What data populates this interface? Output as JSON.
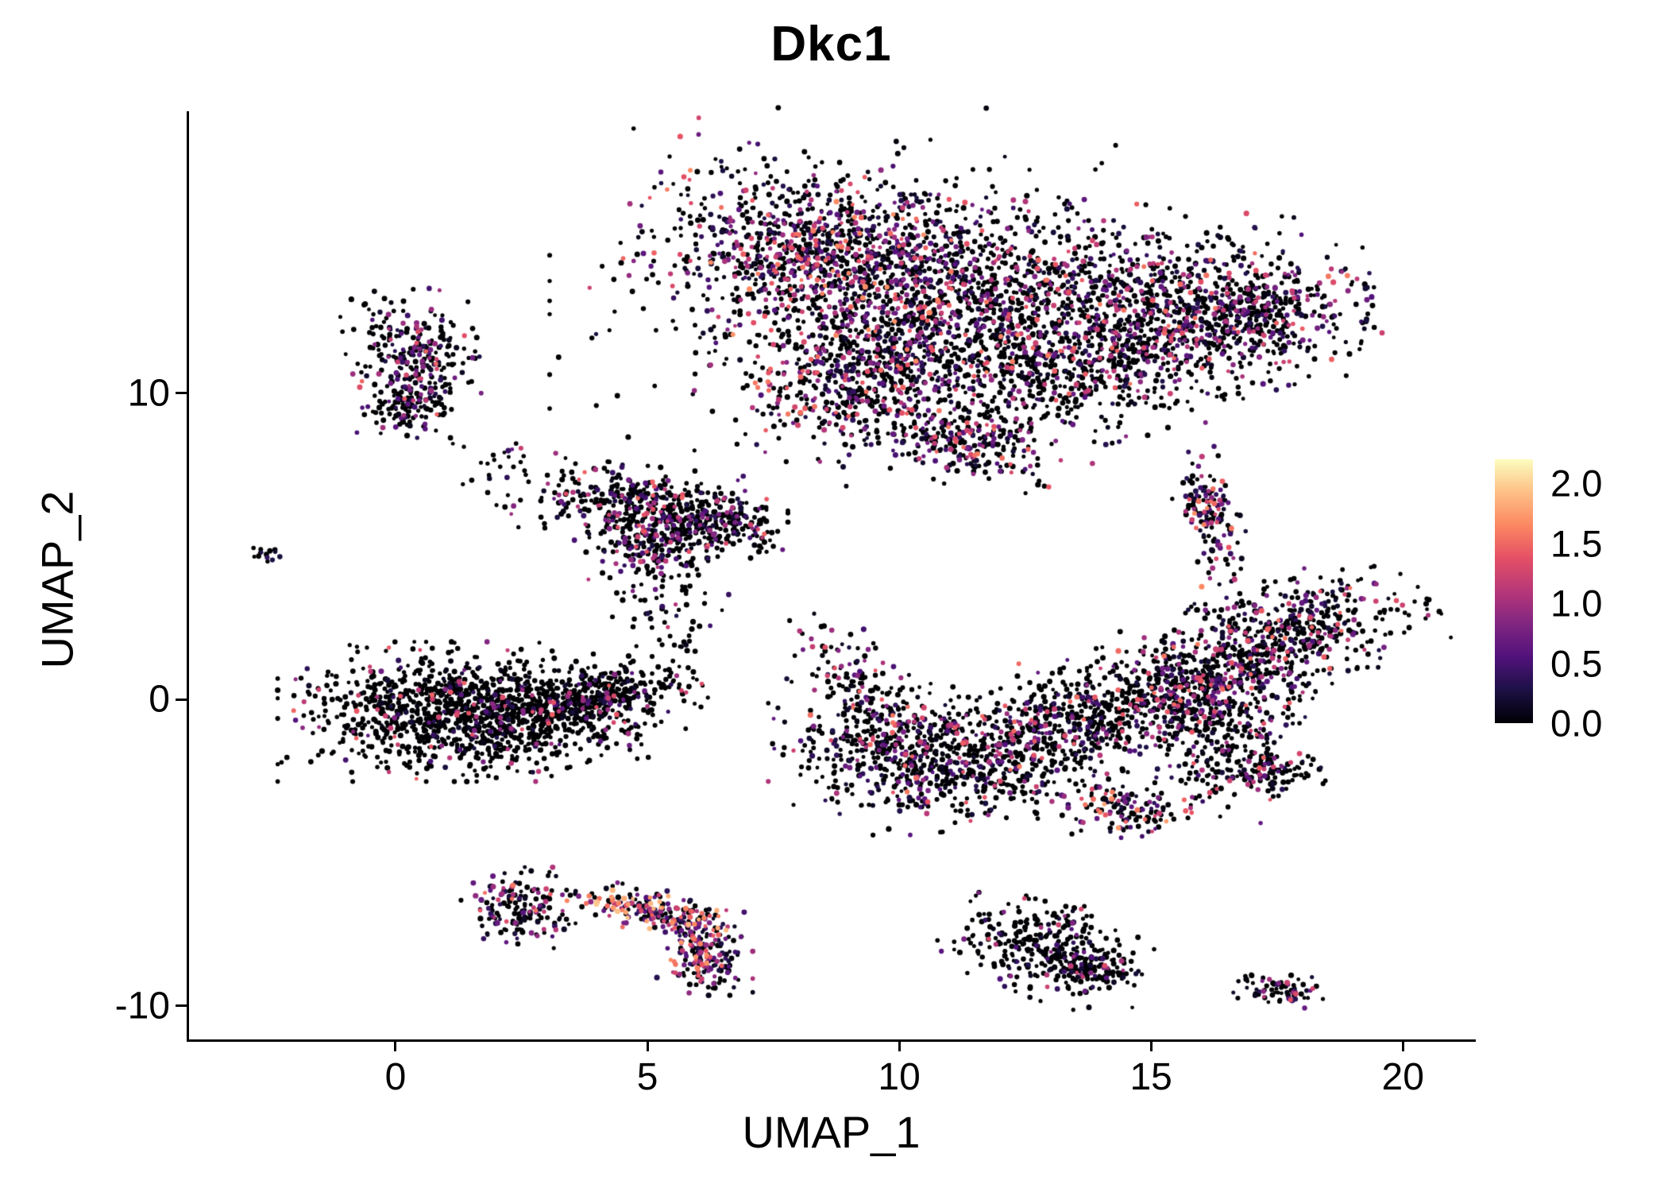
{
  "chart_data": {
    "type": "scatter",
    "title": "Dkc1",
    "xlabel": "UMAP_1",
    "ylabel": "UMAP_2",
    "x_ticks": [
      0,
      5,
      10,
      15,
      20
    ],
    "y_ticks": [
      -10,
      0,
      10
    ],
    "x_range": [
      -4.1,
      21.4
    ],
    "y_range": [
      -11.1,
      19.2
    ],
    "grid": false,
    "background": "#ffffff",
    "axis_color": "#000000",
    "legend": {
      "position": "right",
      "ticks": [
        2.0,
        1.5,
        1.0,
        0.5,
        0.0
      ],
      "min": 0.0,
      "max": 2.2,
      "colormap": "magma",
      "stops": [
        {
          "t": 0.0,
          "hex": "#000004"
        },
        {
          "t": 0.13,
          "hex": "#1d1147"
        },
        {
          "t": 0.25,
          "hex": "#51127c"
        },
        {
          "t": 0.38,
          "hex": "#822681"
        },
        {
          "t": 0.5,
          "hex": "#b73779"
        },
        {
          "t": 0.63,
          "hex": "#e65164"
        },
        {
          "t": 0.75,
          "hex": "#fb8861"
        },
        {
          "t": 0.88,
          "hex": "#fec287"
        },
        {
          "t": 1.0,
          "hex": "#fcfdbf"
        }
      ]
    },
    "point_radius_px": 3,
    "clusters": [
      {
        "name": "top-left-core",
        "cx": 8.3,
        "cy": 14.6,
        "rx": 1.5,
        "ry": 1.3,
        "rot": -15,
        "n": 900,
        "pz": 0.42,
        "vmax": 1.7,
        "bias": 1.6
      },
      {
        "name": "top-left-mid",
        "cx": 10.2,
        "cy": 12.4,
        "rx": 1.4,
        "ry": 1.7,
        "rot": 0,
        "n": 700,
        "pz": 0.45,
        "vmax": 1.7,
        "bias": 1.6
      },
      {
        "name": "top-left-lower",
        "cx": 9.0,
        "cy": 10.4,
        "rx": 1.1,
        "ry": 1.1,
        "rot": 0,
        "n": 400,
        "pz": 0.5,
        "vmax": 1.6,
        "bias": 1.7
      },
      {
        "name": "top-left-halo",
        "cx": 9.3,
        "cy": 13.2,
        "rx": 2.6,
        "ry": 2.6,
        "rot": 0,
        "n": 260,
        "pz": 0.75,
        "vmax": 1.4,
        "bias": 2.0
      },
      {
        "name": "top-tail",
        "cx": 11.4,
        "cy": 8.4,
        "rx": 0.85,
        "ry": 0.6,
        "rot": -25,
        "n": 220,
        "pz": 0.45,
        "vmax": 1.6,
        "bias": 1.5
      },
      {
        "name": "top-gap-sparse",
        "cx": 12.2,
        "cy": 12.5,
        "rx": 0.9,
        "ry": 2.0,
        "rot": 0,
        "n": 150,
        "pz": 0.72,
        "vmax": 1.4,
        "bias": 2.0
      },
      {
        "name": "top-right-core",
        "cx": 14.3,
        "cy": 13.2,
        "rx": 2.1,
        "ry": 1.25,
        "rot": -8,
        "n": 850,
        "pz": 0.5,
        "vmax": 1.6,
        "bias": 1.7
      },
      {
        "name": "top-right-lower",
        "cx": 13.2,
        "cy": 10.8,
        "rx": 1.6,
        "ry": 1.1,
        "rot": 20,
        "n": 450,
        "pz": 0.6,
        "vmax": 1.5,
        "bias": 1.8
      },
      {
        "name": "top-right-inner",
        "cx": 15.9,
        "cy": 12.0,
        "rx": 1.5,
        "ry": 0.9,
        "rot": 15,
        "n": 420,
        "pz": 0.5,
        "vmax": 1.6,
        "bias": 1.6
      },
      {
        "name": "top-right-tip",
        "cx": 17.1,
        "cy": 12.7,
        "rx": 0.8,
        "ry": 0.55,
        "rot": 20,
        "n": 160,
        "pz": 0.55,
        "vmax": 1.4,
        "bias": 1.8
      },
      {
        "name": "left-upper-blob",
        "cx": 0.35,
        "cy": 11.1,
        "rx": 0.55,
        "ry": 0.95,
        "rot": 5,
        "n": 280,
        "pz": 0.5,
        "vmax": 1.5,
        "bias": 1.7
      },
      {
        "name": "left-upper-foot",
        "cx": 0.25,
        "cy": 9.5,
        "rx": 0.35,
        "ry": 0.4,
        "rot": 0,
        "n": 90,
        "pz": 0.75,
        "vmax": 1.2,
        "bias": 2.0
      },
      {
        "name": "tiny-far-left",
        "cx": -2.6,
        "cy": 4.7,
        "rx": 0.16,
        "ry": 0.16,
        "rot": 0,
        "n": 14,
        "pz": 0.6,
        "vmax": 1.2,
        "bias": 2.0
      },
      {
        "name": "small-sparse-upper-left",
        "cx": 2.1,
        "cy": 7.6,
        "rx": 0.45,
        "ry": 0.55,
        "rot": 0,
        "n": 28,
        "pz": 0.85,
        "vmax": 1.2,
        "bias": 2.0
      },
      {
        "name": "mid-left-main",
        "cx": 4.9,
        "cy": 6.3,
        "rx": 1.05,
        "ry": 0.55,
        "rot": -10,
        "n": 380,
        "pz": 0.6,
        "vmax": 1.5,
        "bias": 1.8
      },
      {
        "name": "mid-left-right",
        "cx": 6.35,
        "cy": 5.7,
        "rx": 0.6,
        "ry": 0.55,
        "rot": 0,
        "n": 220,
        "pz": 0.55,
        "vmax": 1.5,
        "bias": 1.7
      },
      {
        "name": "mid-left-lower",
        "cx": 4.95,
        "cy": 5.0,
        "rx": 0.5,
        "ry": 0.5,
        "rot": 0,
        "n": 130,
        "pz": 0.6,
        "vmax": 1.4,
        "bias": 1.8
      },
      {
        "name": "mid-left-trail",
        "cx": 5.4,
        "cy": 3.4,
        "rx": 0.5,
        "ry": 1.0,
        "rot": 10,
        "n": 80,
        "pz": 0.85,
        "vmax": 1.2,
        "bias": 2.0
      },
      {
        "name": "left-main-west",
        "cx": 0.9,
        "cy": -0.4,
        "rx": 1.35,
        "ry": 0.95,
        "rot": 0,
        "n": 900,
        "pz": 0.8,
        "vmax": 1.5,
        "bias": 2.2
      },
      {
        "name": "left-main-east",
        "cx": 2.9,
        "cy": -0.5,
        "rx": 1.2,
        "ry": 0.75,
        "rot": 12,
        "n": 500,
        "pz": 0.82,
        "vmax": 1.4,
        "bias": 2.2
      },
      {
        "name": "left-main-tip",
        "cx": 4.3,
        "cy": 0.2,
        "rx": 0.75,
        "ry": 0.4,
        "rot": 15,
        "n": 240,
        "pz": 0.75,
        "vmax": 1.5,
        "bias": 2.0
      },
      {
        "name": "center-arm",
        "cx": 9.2,
        "cy": 0.7,
        "rx": 0.55,
        "ry": 0.95,
        "rot": 25,
        "n": 130,
        "pz": 0.55,
        "vmax": 1.6,
        "bias": 1.6
      },
      {
        "name": "center-west",
        "cx": 9.8,
        "cy": -1.4,
        "rx": 1.0,
        "ry": 0.85,
        "rot": 0,
        "n": 360,
        "pz": 0.6,
        "vmax": 1.6,
        "bias": 1.7
      },
      {
        "name": "center-southwest",
        "cx": 11.3,
        "cy": -2.3,
        "rx": 1.15,
        "ry": 0.8,
        "rot": 10,
        "n": 380,
        "pz": 0.62,
        "vmax": 1.6,
        "bias": 1.7
      },
      {
        "name": "center-mid",
        "cx": 12.9,
        "cy": -1.2,
        "rx": 1.2,
        "ry": 0.85,
        "rot": 15,
        "n": 330,
        "pz": 0.7,
        "vmax": 1.5,
        "bias": 1.8
      },
      {
        "name": "center-east",
        "cx": 14.7,
        "cy": -0.1,
        "rx": 1.3,
        "ry": 0.8,
        "rot": 18,
        "n": 400,
        "pz": 0.6,
        "vmax": 1.6,
        "bias": 1.7
      },
      {
        "name": "right-band",
        "cx": 16.4,
        "cy": 0.9,
        "rx": 1.2,
        "ry": 0.85,
        "rot": 25,
        "n": 450,
        "pz": 0.55,
        "vmax": 1.6,
        "bias": 1.6
      },
      {
        "name": "right-arm-up",
        "cx": 17.9,
        "cy": 2.3,
        "rx": 1.15,
        "ry": 0.7,
        "rot": 28,
        "n": 380,
        "pz": 0.55,
        "vmax": 1.6,
        "bias": 1.6
      },
      {
        "name": "right-hook",
        "cx": 16.6,
        "cy": -1.4,
        "rx": 0.55,
        "ry": 1.0,
        "rot": -15,
        "n": 200,
        "pz": 0.6,
        "vmax": 1.5,
        "bias": 1.7
      },
      {
        "name": "right-hook-tip",
        "cx": 17.4,
        "cy": -2.4,
        "rx": 0.5,
        "ry": 0.35,
        "rot": 20,
        "n": 100,
        "pz": 0.6,
        "vmax": 1.5,
        "bias": 1.7
      },
      {
        "name": "right-vertical-small",
        "cx": 16.2,
        "cy": 5.8,
        "rx": 0.28,
        "ry": 1.05,
        "rot": 8,
        "n": 150,
        "pz": 0.5,
        "vmax": 1.7,
        "bias": 1.4
      },
      {
        "name": "small-below-center",
        "cx": 14.5,
        "cy": -3.6,
        "rx": 0.6,
        "ry": 0.42,
        "rot": -12,
        "n": 130,
        "pz": 0.5,
        "vmax": 1.8,
        "bias": 1.4
      },
      {
        "name": "bottom-left-blob",
        "cx": 2.5,
        "cy": -6.8,
        "rx": 0.5,
        "ry": 0.55,
        "rot": 0,
        "n": 170,
        "pz": 0.5,
        "vmax": 1.6,
        "bias": 1.5
      },
      {
        "name": "bottom-band-1",
        "cx": 4.6,
        "cy": -6.7,
        "rx": 0.5,
        "ry": 0.28,
        "rot": -10,
        "n": 80,
        "pz": 0.3,
        "vmax": 2.0,
        "bias": 1.0
      },
      {
        "name": "bottom-band-2",
        "cx": 5.5,
        "cy": -7.1,
        "rx": 0.55,
        "ry": 0.3,
        "rot": -25,
        "n": 110,
        "pz": 0.3,
        "vmax": 2.0,
        "bias": 1.0
      },
      {
        "name": "bottom-band-3",
        "cx": 6.1,
        "cy": -7.9,
        "rx": 0.3,
        "ry": 0.55,
        "rot": -10,
        "n": 110,
        "pz": 0.35,
        "vmax": 1.8,
        "bias": 1.2
      },
      {
        "name": "bottom-band-4",
        "cx": 6.3,
        "cy": -8.7,
        "rx": 0.33,
        "ry": 0.4,
        "rot": 0,
        "n": 90,
        "pz": 0.4,
        "vmax": 1.7,
        "bias": 1.3
      },
      {
        "name": "bottom-center-main",
        "cx": 12.9,
        "cy": -8.1,
        "rx": 0.85,
        "ry": 0.65,
        "rot": -30,
        "n": 300,
        "pz": 0.75,
        "vmax": 1.4,
        "bias": 2.0
      },
      {
        "name": "bottom-center-tip",
        "cx": 13.9,
        "cy": -8.9,
        "rx": 0.45,
        "ry": 0.35,
        "rot": -20,
        "n": 110,
        "pz": 0.7,
        "vmax": 1.4,
        "bias": 2.0
      },
      {
        "name": "bottom-right-small",
        "cx": 17.5,
        "cy": -9.5,
        "rx": 0.45,
        "ry": 0.22,
        "rot": -8,
        "n": 70,
        "pz": 0.55,
        "vmax": 1.4,
        "bias": 1.6
      }
    ]
  }
}
